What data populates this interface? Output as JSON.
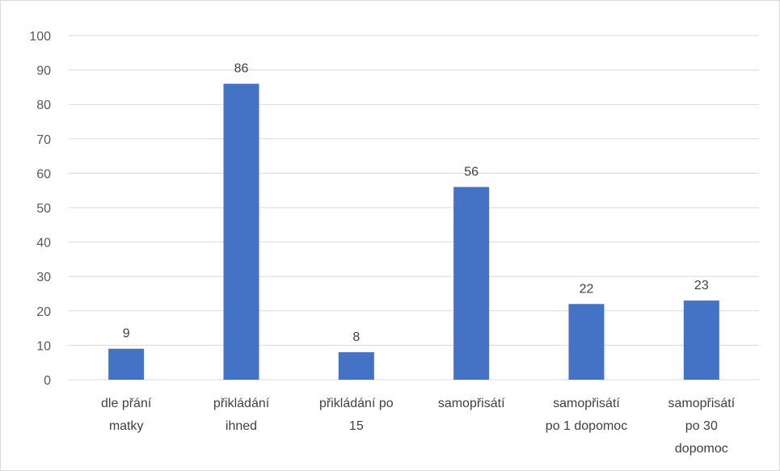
{
  "chart_data": {
    "type": "bar",
    "title": "",
    "xlabel": "",
    "ylabel": "",
    "ylim": [
      0,
      100
    ],
    "yticks": [
      0,
      10,
      20,
      30,
      40,
      50,
      60,
      70,
      80,
      90,
      100
    ],
    "grid": true,
    "legend": "none",
    "bar_color": "#4472C4",
    "categories": [
      [
        "dle přání",
        "matky"
      ],
      [
        "přikládání",
        "ihned"
      ],
      [
        "přikládání po",
        "15"
      ],
      [
        "samopřisátí"
      ],
      [
        "samopřisátí",
        "po 1 dopomoc"
      ],
      [
        "samopřisátí",
        "po 30",
        "dopomoc"
      ]
    ],
    "values": [
      9,
      86,
      8,
      56,
      22,
      23
    ],
    "data_labels": [
      "9",
      "86",
      "8",
      "56",
      "22",
      "23"
    ]
  }
}
